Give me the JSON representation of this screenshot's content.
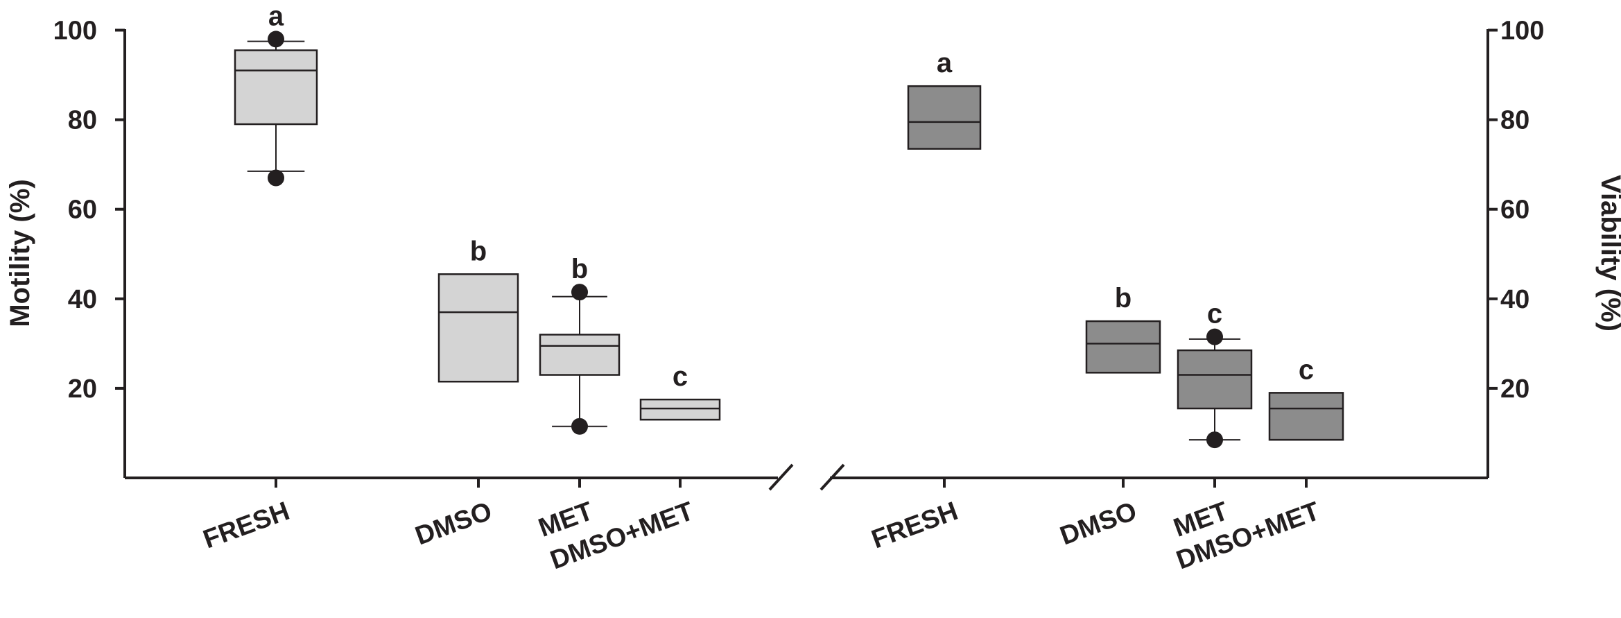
{
  "chart_data": {
    "type": "box",
    "colors": {
      "motility_fill": "#d4d4d4",
      "viability_fill": "#8c8c8c",
      "stroke": "#231f20"
    },
    "y_ticks": [
      "20",
      "40",
      "60",
      "80",
      "100"
    ],
    "panels": [
      {
        "ylabel": "Motility (%)",
        "ylim": [
          0,
          100
        ],
        "axis_side": "left",
        "series_color_key": "motility_fill",
        "groups": [
          {
            "name": "FRESH",
            "letter": "a",
            "q1": 79,
            "median": 91,
            "q3": 95.5,
            "whisker_low": 68.5,
            "whisker_high": 97.5,
            "outliers": [
              98,
              67
            ]
          },
          {
            "name": "DMSO",
            "letter": "b",
            "q1": 21.5,
            "median": 37,
            "q3": 45.5,
            "whisker_low": null,
            "whisker_high": null,
            "outliers": []
          },
          {
            "name": "MET",
            "letter": "b",
            "q1": 23,
            "median": 29.5,
            "q3": 32,
            "whisker_low": 11.5,
            "whisker_high": 40.5,
            "outliers": [
              41.5,
              11.5
            ]
          },
          {
            "name": "DMSO+MET",
            "letter": "c",
            "q1": 13,
            "median": 15.5,
            "q3": 17.5,
            "whisker_low": null,
            "whisker_high": null,
            "outliers": []
          }
        ]
      },
      {
        "ylabel": "Viability (%)",
        "ylim": [
          0,
          100
        ],
        "axis_side": "right",
        "series_color_key": "viability_fill",
        "groups": [
          {
            "name": "FRESH",
            "letter": "a",
            "q1": 73.5,
            "median": 79.5,
            "q3": 87.5,
            "whisker_low": null,
            "whisker_high": null,
            "outliers": []
          },
          {
            "name": "DMSO",
            "letter": "b",
            "q1": 23.5,
            "median": 30,
            "q3": 35,
            "whisker_low": null,
            "whisker_high": null,
            "outliers": []
          },
          {
            "name": "MET",
            "letter": "c",
            "q1": 15.5,
            "median": 23,
            "q3": 28.5,
            "whisker_low": 8.5,
            "whisker_high": 31,
            "outliers": [
              31.5,
              8.5
            ]
          },
          {
            "name": "DMSO+MET",
            "letter": "c",
            "q1": 8.5,
            "median": 15.5,
            "q3": 19,
            "whisker_low": null,
            "whisker_high": null,
            "outliers": []
          }
        ]
      }
    ]
  }
}
